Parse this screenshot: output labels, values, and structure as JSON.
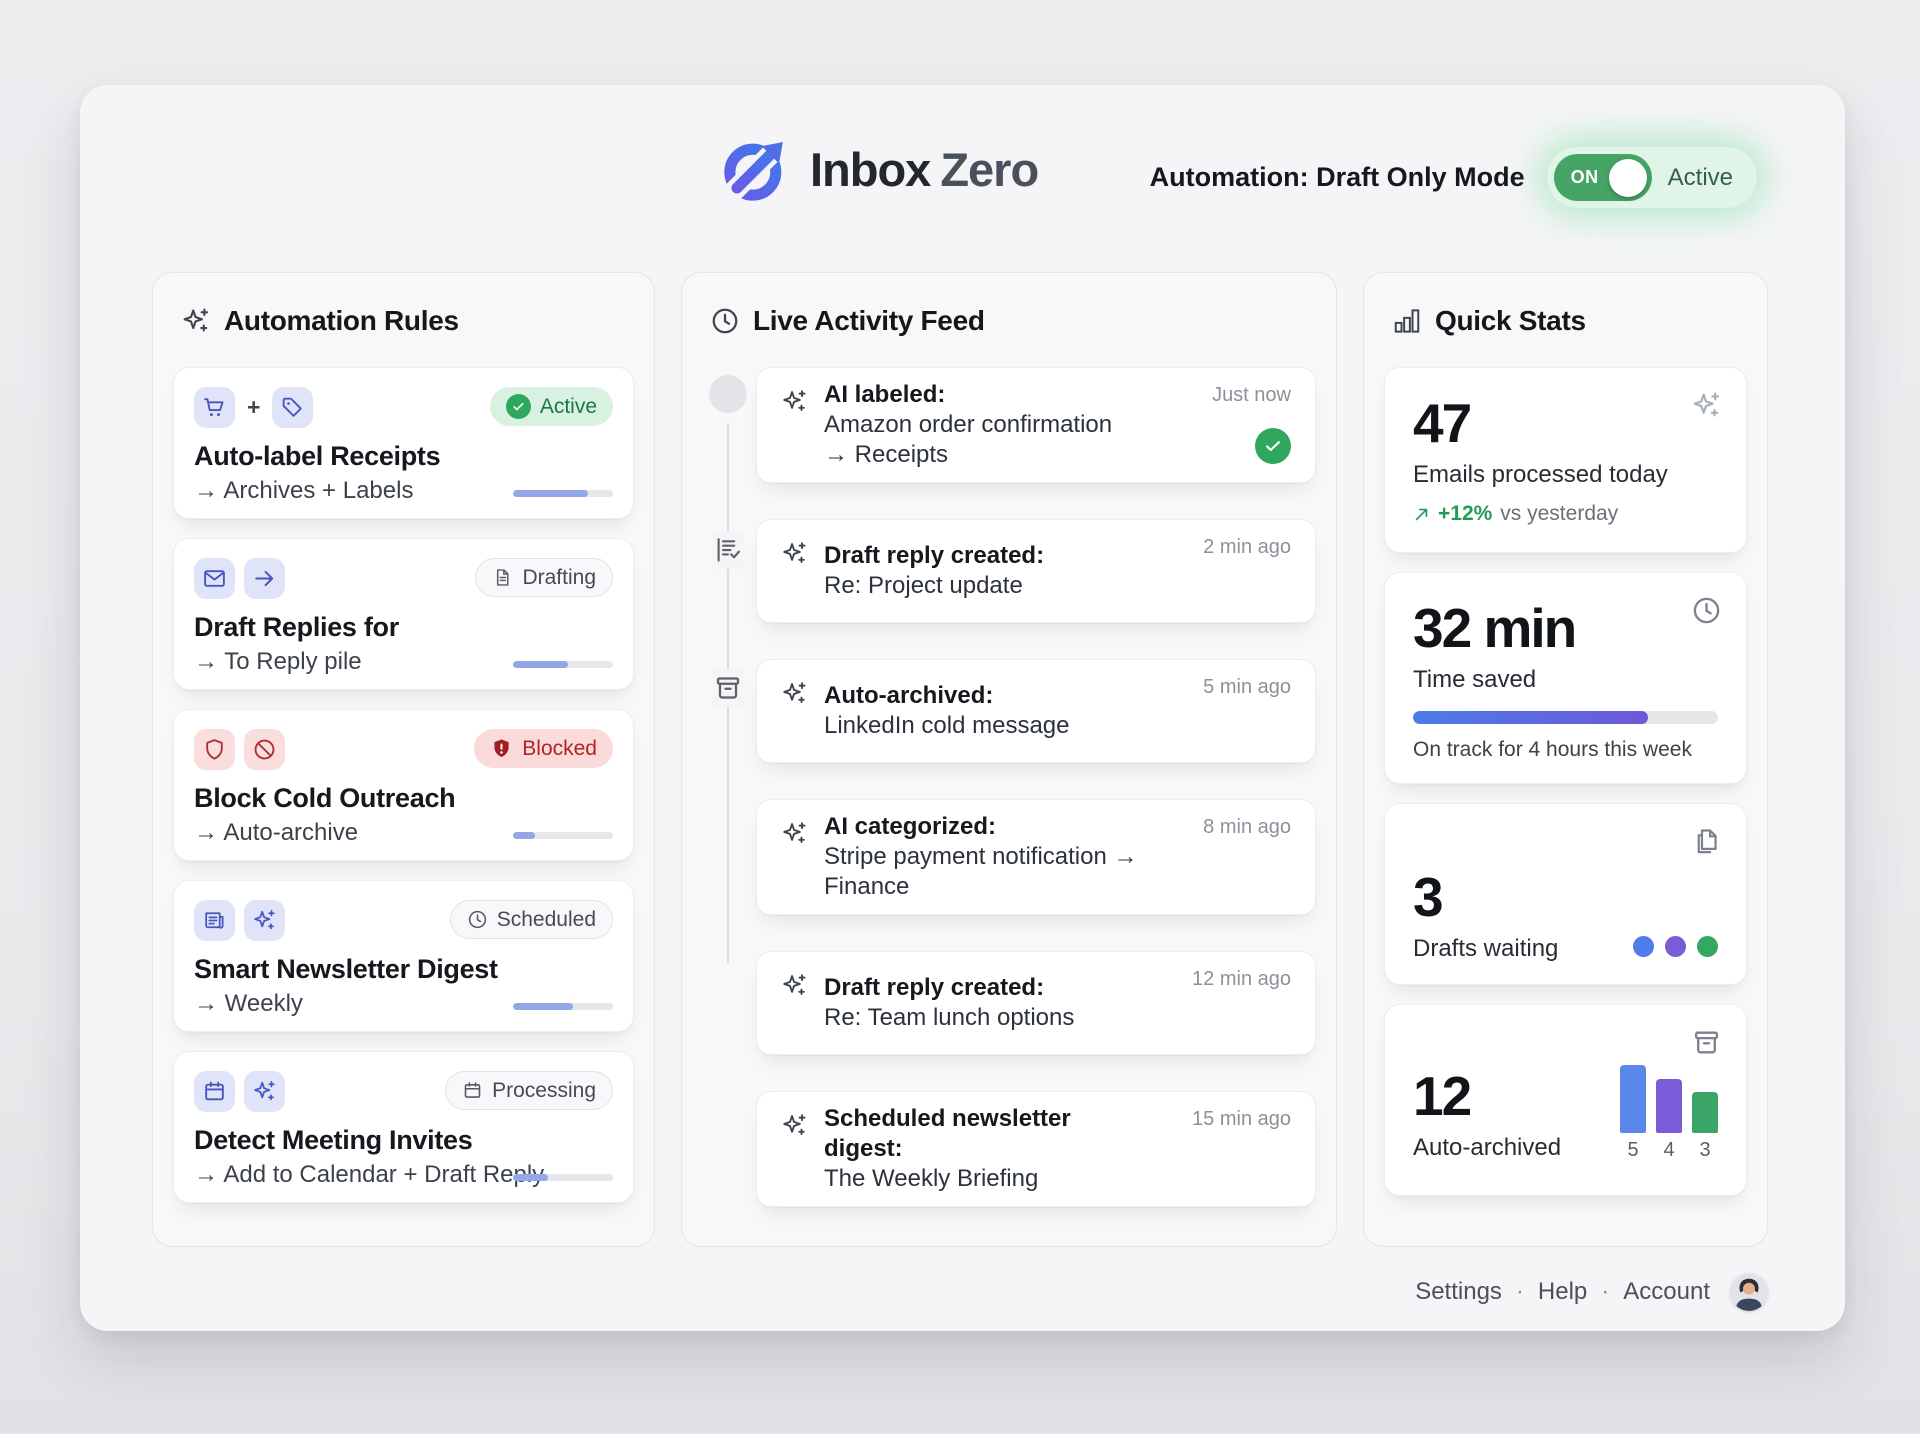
{
  "header": {
    "brand_word1": "Inbox",
    "brand_word2": "Zero",
    "automation_label": "Automation: Draft Only Mode",
    "toggle_on_label": "ON",
    "toggle_status": "Active"
  },
  "automation_rules": {
    "title": "Automation Rules",
    "plus_sign": "+",
    "rules": [
      {
        "title": "Auto-label Receipts",
        "subtitle": "→ Archives + Labels",
        "badge": "Active",
        "progress": 75
      },
      {
        "title": "Draft Replies for",
        "subtitle": "→ To Reply pile",
        "badge": "Drafting",
        "progress": 55
      },
      {
        "title": "Block Cold Outreach",
        "subtitle": "→ Auto-archive",
        "badge": "Blocked",
        "progress": 22
      },
      {
        "title": "Smart Newsletter Digest",
        "subtitle": "→ Weekly",
        "badge": "Scheduled",
        "progress": 60
      },
      {
        "title": "Detect Meeting Invites",
        "subtitle": "→ Add to Calendar + Draft Reply",
        "badge": "Processing",
        "progress": 35
      }
    ]
  },
  "activity_feed": {
    "title": "Live Activity Feed",
    "items": [
      {
        "action": "AI labeled:",
        "detail": "Amazon order confirmation",
        "detail2": "→ Receipts",
        "time": "Just now"
      },
      {
        "action": "Draft reply created:",
        "detail": "Re: Project update",
        "time": "2 min ago"
      },
      {
        "action": "Auto-archived:",
        "detail": "LinkedIn cold message",
        "time": "5 min ago"
      },
      {
        "action": "AI categorized:",
        "detail": "Stripe payment notification → Finance",
        "time": "8 min ago"
      },
      {
        "action": "Draft reply created:",
        "detail": "Re: Team lunch options",
        "time": "12 min ago"
      },
      {
        "action": "Scheduled newsletter digest:",
        "detail": "The Weekly Briefing",
        "time": "15 min ago"
      }
    ]
  },
  "quick_stats": {
    "title": "Quick Stats",
    "stats": [
      {
        "value": "47",
        "label": "Emails processed today",
        "trend_value": "+12%",
        "trend_label": "vs yesterday"
      },
      {
        "value": "32 min",
        "label": "Time saved",
        "progress": 77,
        "note": "On track for 4 hours this week"
      },
      {
        "value": "3",
        "label": "Drafts waiting"
      },
      {
        "value": "12",
        "label": "Auto-archived",
        "chart": {
          "type": "bar",
          "values": [
            5,
            4,
            3
          ]
        }
      }
    ]
  },
  "footer": {
    "links": [
      "Settings",
      "Help",
      "Account"
    ],
    "separator": "·"
  },
  "colors": {
    "accent_green": "#2fa75f",
    "toggle_green": "#46a467",
    "indigo_icon": "#4a55c0",
    "blocked_red": "#b32323",
    "trend_green": "#1f9d55",
    "rule_progress_fill": "#93a7e6",
    "time_saved_gradient": [
      "#4b7bea",
      "#6f58d8"
    ],
    "dots": [
      "#4f7cea",
      "#7a5cd8",
      "#35a860"
    ],
    "bars": [
      "#5b86ea",
      "#7a5cd8",
      "#3aa567"
    ]
  }
}
